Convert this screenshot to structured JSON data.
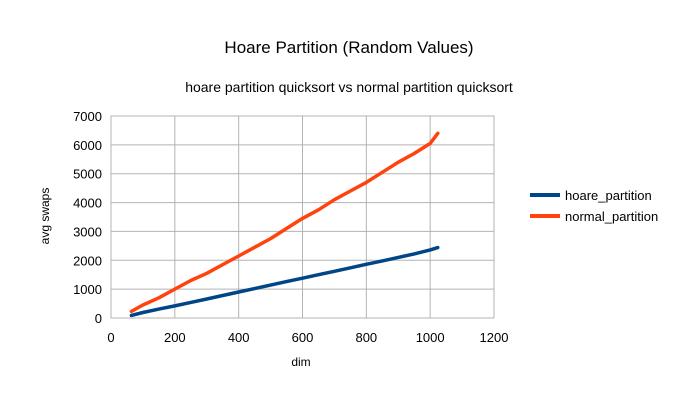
{
  "chart_data": {
    "type": "line",
    "title": "Hoare Partition (Random Values)",
    "subtitle": "hoare partition quicksort vs normal partition quicksort",
    "xlabel": "dim",
    "ylabel": "avg swaps",
    "xlim": [
      0,
      1200
    ],
    "ylim": [
      0,
      7000
    ],
    "x_ticks": [
      0,
      200,
      400,
      600,
      800,
      1000,
      1200
    ],
    "y_ticks": [
      0,
      1000,
      2000,
      3000,
      4000,
      5000,
      6000,
      7000
    ],
    "grid": true,
    "legend_position": "right",
    "x": [
      64,
      100,
      150,
      200,
      250,
      300,
      350,
      400,
      450,
      500,
      550,
      600,
      650,
      700,
      750,
      800,
      850,
      900,
      950,
      1000,
      1024
    ],
    "series": [
      {
        "name": "hoare_partition",
        "color": "#004586",
        "values": [
          90,
          190,
          310,
          420,
          540,
          660,
          780,
          900,
          1020,
          1140,
          1260,
          1380,
          1500,
          1620,
          1740,
          1860,
          1980,
          2100,
          2220,
          2360,
          2440
        ]
      },
      {
        "name": "normal_partition",
        "color": "#ff420e",
        "values": [
          230,
          450,
          700,
          1000,
          1300,
          1550,
          1850,
          2150,
          2450,
          2750,
          3100,
          3450,
          3750,
          4100,
          4400,
          4700,
          5050,
          5400,
          5700,
          6050,
          6400
        ]
      }
    ]
  }
}
